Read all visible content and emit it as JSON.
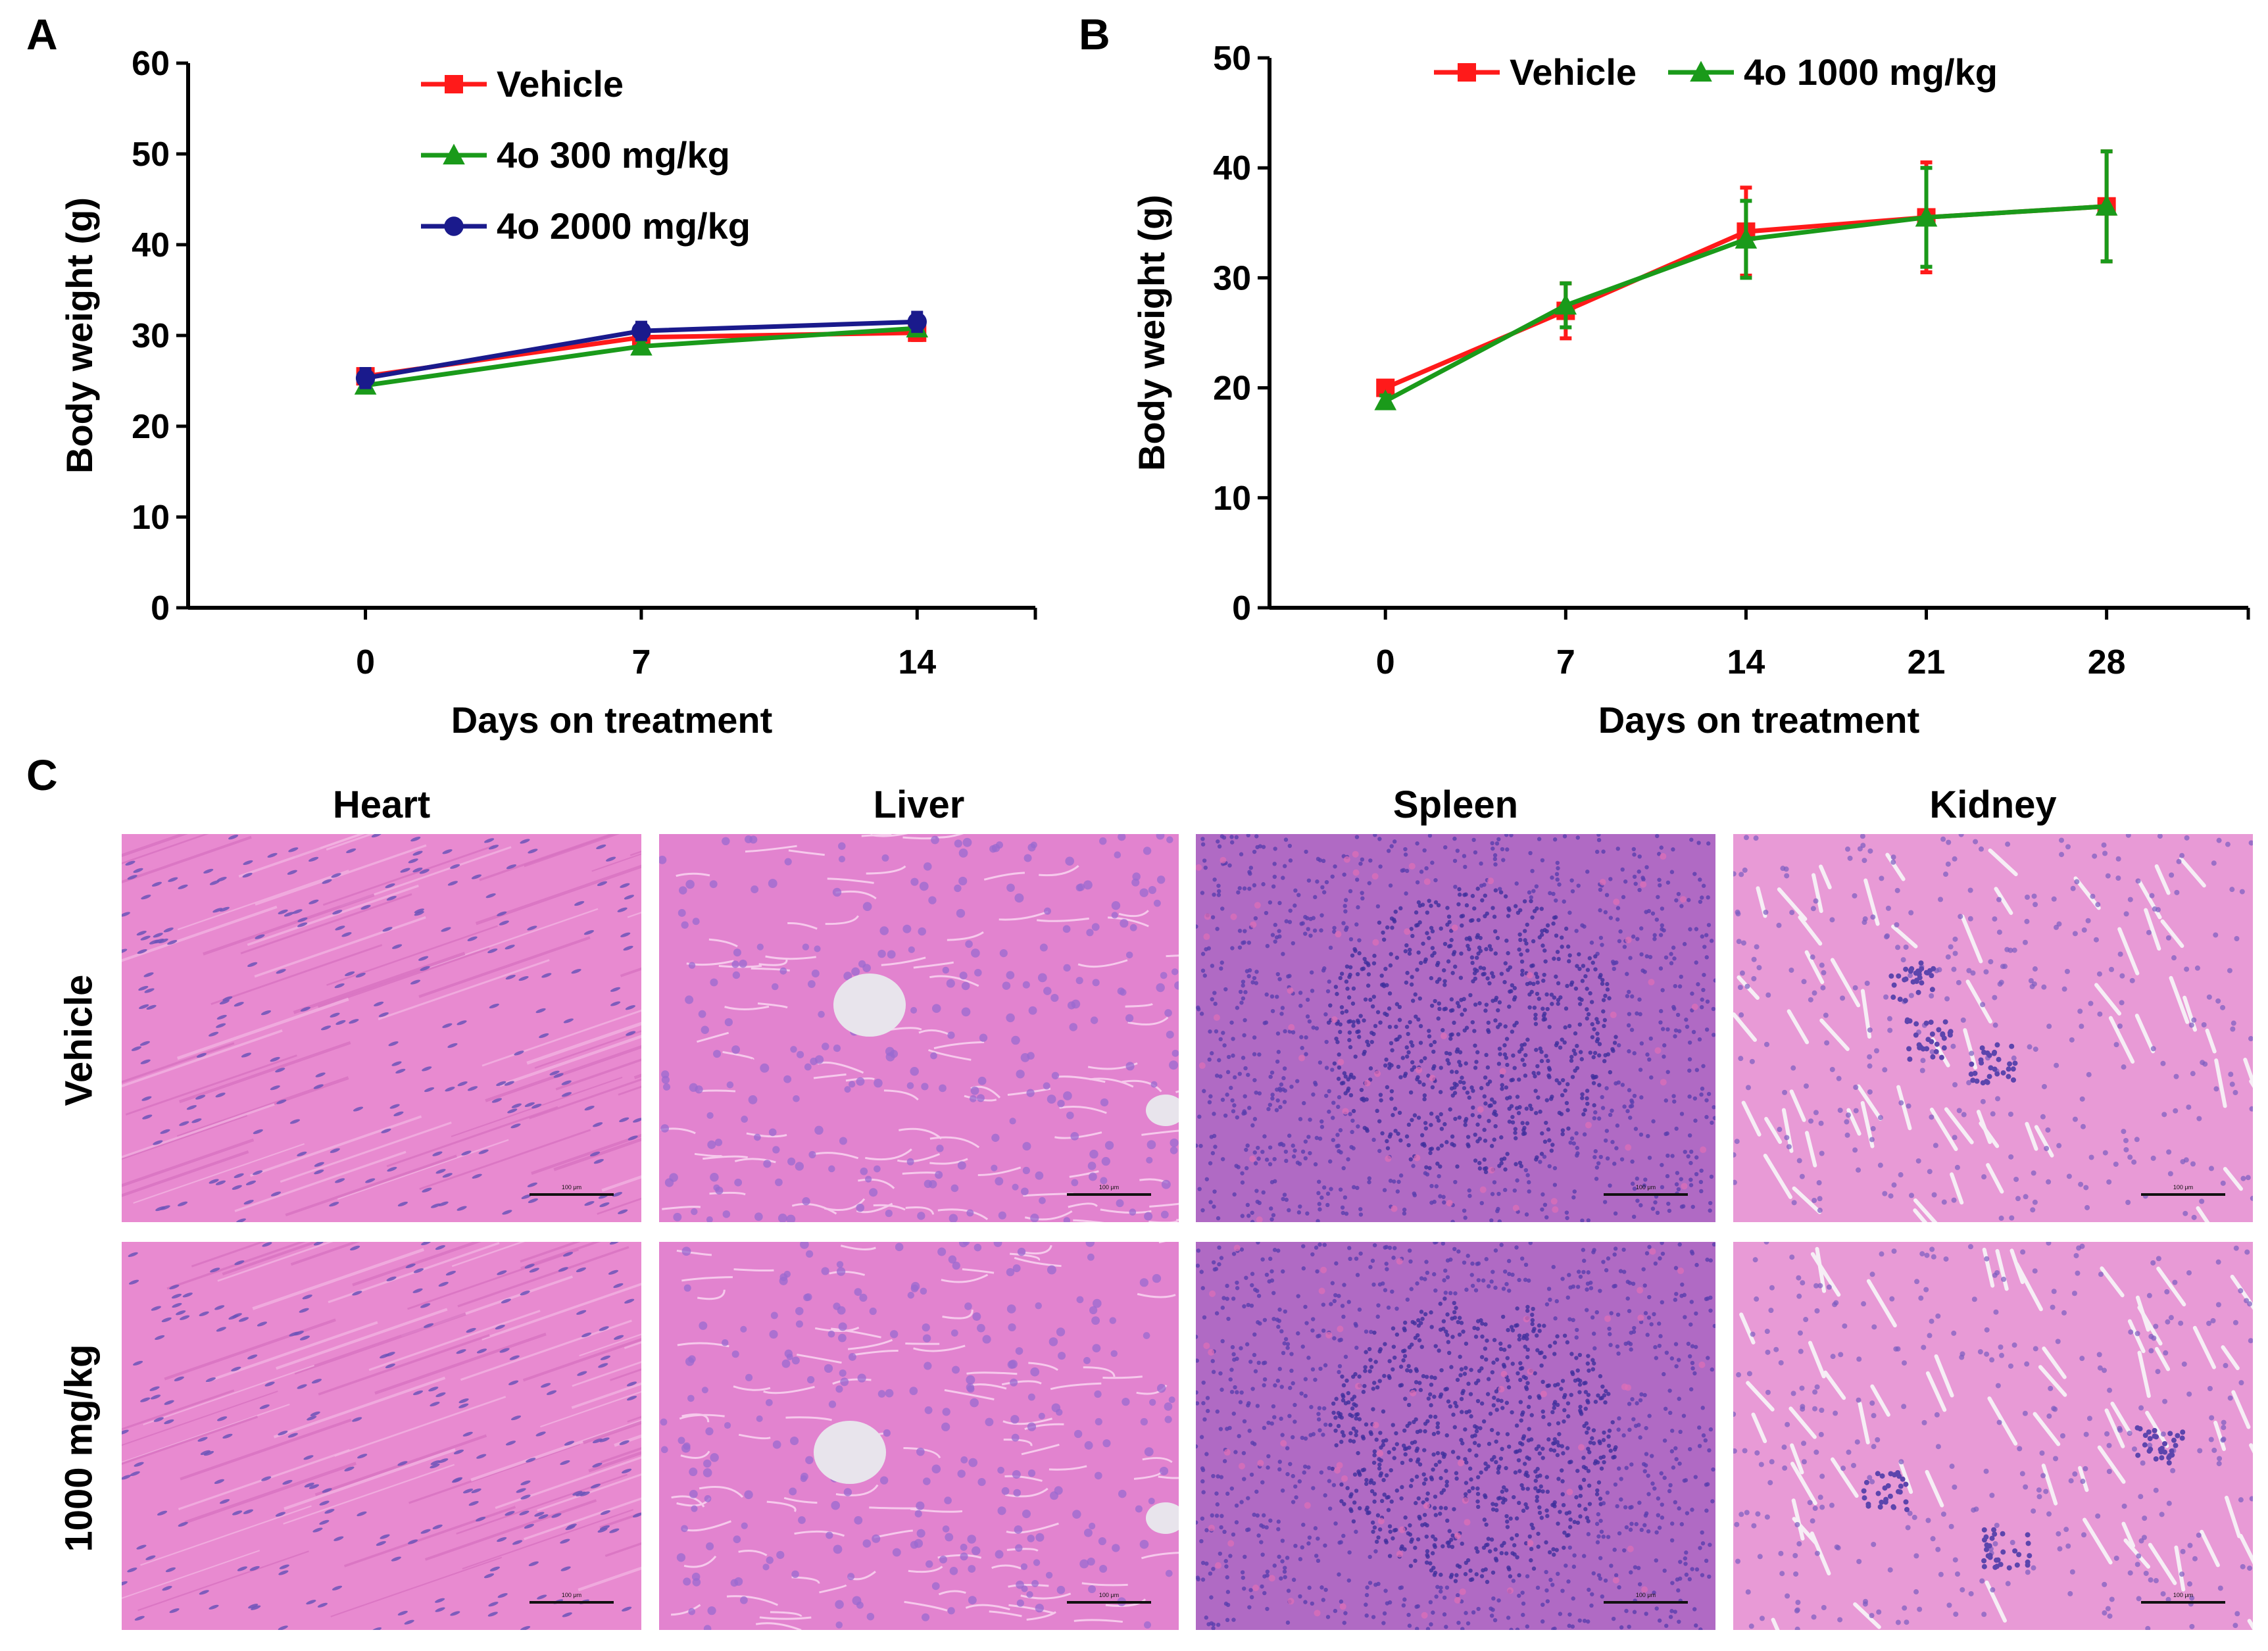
{
  "panels": {
    "a": "A",
    "b": "B",
    "c": "C"
  },
  "chart_data": [
    {
      "type": "line",
      "x": [
        0,
        7,
        14
      ],
      "xlabel": "Days on treatment",
      "ylabel": "Body weight (g)",
      "ylim": [
        0,
        60
      ],
      "yticks": [
        0,
        10,
        20,
        30,
        40,
        50,
        60
      ],
      "legend_position": "top-center",
      "series": [
        {
          "name": "Vehicle",
          "color": "#ff1a1a",
          "marker": "square",
          "values": [
            25.5,
            29.8,
            30.3
          ],
          "errors": [
            0.8,
            0.8,
            0.8
          ]
        },
        {
          "name": "4o 300 mg/kg",
          "color": "#1a9a1a",
          "marker": "triangle",
          "values": [
            24.5,
            28.8,
            30.8
          ],
          "errors": [
            0.6,
            0.7,
            0.7
          ]
        },
        {
          "name": "4o 2000 mg/kg",
          "color": "#1a1a8c",
          "marker": "circle",
          "values": [
            25.3,
            30.5,
            31.5
          ],
          "errors": [
            1.0,
            0.9,
            1.0
          ]
        }
      ]
    },
    {
      "type": "line",
      "x": [
        0,
        7,
        14,
        21,
        28
      ],
      "xlabel": "Days on treatment",
      "ylabel": "Body weight (g)",
      "ylim": [
        0,
        50
      ],
      "yticks": [
        0,
        10,
        20,
        30,
        40,
        50
      ],
      "legend_position": "top",
      "series": [
        {
          "name": "Vehicle",
          "color": "#ff1a1a",
          "marker": "square",
          "values": [
            20.0,
            27.0,
            34.2,
            35.5,
            36.5
          ],
          "errors": [
            0.5,
            2.5,
            4.0,
            5.0,
            5.0
          ]
        },
        {
          "name": "4o 1000 mg/kg",
          "color": "#1a9a1a",
          "marker": "triangle",
          "values": [
            18.8,
            27.5,
            33.5,
            35.5,
            36.5
          ],
          "errors": [
            0.5,
            2.0,
            3.5,
            4.5,
            5.0
          ]
        }
      ]
    }
  ],
  "histology": {
    "columns": [
      "Heart",
      "Liver",
      "Spleen",
      "Kidney"
    ],
    "rows": [
      "Vehicle",
      "1000 mg/kg"
    ],
    "scale_text": "100 μm"
  }
}
